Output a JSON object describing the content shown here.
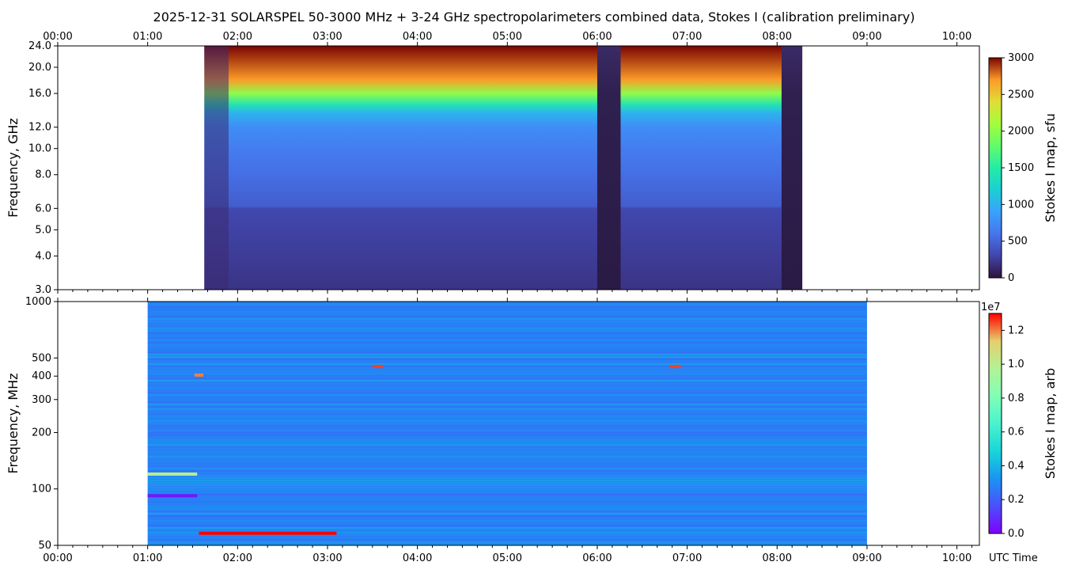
{
  "title": "2025-12-31  SOLARSPEL  50-3000 MHz  +  3-24 GHz  spectropolarimeters combined data,  Stokes I  (calibration preliminary)",
  "time_axis": {
    "label": "UTC Time",
    "ticks": [
      "00:00",
      "01:00",
      "02:00",
      "03:00",
      "04:00",
      "05:00",
      "06:00",
      "07:00",
      "08:00",
      "09:00",
      "10:00"
    ],
    "range_hours": [
      0.0,
      10.25
    ]
  },
  "colors": {
    "background": "#ffffff",
    "stokes_map_colormap": "turbo",
    "stokes_arb_colormap": "rainbow",
    "no_data": "#ffffff"
  },
  "chart_data": [
    {
      "type": "heatmap",
      "panel": "top",
      "ylabel": "Frequency, GHz",
      "yscale": "log",
      "ylim": [
        3.0,
        24.0
      ],
      "yticks": [
        "3.0",
        "4.0",
        "5.0",
        "6.0",
        "8.0",
        "10.0",
        "12.0",
        "16.0",
        "20.0",
        "24.0"
      ],
      "ytick_values": [
        3,
        4,
        5,
        6,
        8,
        10,
        12,
        16,
        20,
        24
      ],
      "data_time_range": [
        1.63,
        8.28
      ],
      "gaps": [
        [
          6.0,
          6.26
        ],
        [
          8.05,
          8.28
        ]
      ],
      "colorbar": {
        "label": "Stokes I map, sfu",
        "min": 0,
        "max": 3000,
        "ticks": [
          "0",
          "500",
          "1000",
          "1500",
          "2000",
          "2500",
          "3000"
        ],
        "tick_values": [
          0,
          500,
          1000,
          1500,
          2000,
          2500,
          3000
        ]
      },
      "spectrum_profile": [
        {
          "f_ghz": 3.0,
          "sfu": 200
        },
        {
          "f_ghz": 6.0,
          "sfu": 320
        },
        {
          "f_ghz": 6.1,
          "sfu": 450
        },
        {
          "f_ghz": 8.0,
          "sfu": 560
        },
        {
          "f_ghz": 10.0,
          "sfu": 650
        },
        {
          "f_ghz": 12.0,
          "sfu": 760
        },
        {
          "f_ghz": 13.5,
          "sfu": 1000
        },
        {
          "f_ghz": 14.5,
          "sfu": 1400
        },
        {
          "f_ghz": 16.0,
          "sfu": 2000
        },
        {
          "f_ghz": 18.0,
          "sfu": 2700
        },
        {
          "f_ghz": 24.0,
          "sfu": 3000
        }
      ]
    },
    {
      "type": "heatmap",
      "panel": "bottom",
      "ylabel": "Frequency, MHz",
      "yscale": "log",
      "ylim": [
        50,
        1000
      ],
      "yticks": [
        "50",
        "100",
        "200",
        "300",
        "400",
        "500",
        "1000"
      ],
      "ytick_values": [
        50,
        100,
        200,
        300,
        400,
        500,
        1000
      ],
      "data_time_range": [
        1.0,
        9.0
      ],
      "colorbar": {
        "label": "Stokes I map, arb",
        "exponent_label": "1e7",
        "min": 0.0,
        "max": 1.3,
        "ticks": [
          "0.0",
          "0.2",
          "0.4",
          "0.6",
          "0.8",
          "1.0",
          "1.2"
        ],
        "tick_values": [
          0.0,
          0.2,
          0.4,
          0.6,
          0.8,
          1.0,
          1.2
        ]
      },
      "features": [
        {
          "f_mhz": 58,
          "t_start": 1.57,
          "t_end": 3.1,
          "value": 1.3
        },
        {
          "f_mhz": 120,
          "t_start": 1.0,
          "t_end": 1.55,
          "value": 1.0
        },
        {
          "f_mhz": 92,
          "t_start": 1.0,
          "t_end": 1.55,
          "value": 0.05
        },
        {
          "f_mhz": 405,
          "t_start": 1.52,
          "t_end": 1.62,
          "value": 1.2
        },
        {
          "f_mhz": 450,
          "t_start": 3.5,
          "t_end": 3.62,
          "value": 1.25
        },
        {
          "f_mhz": 450,
          "t_start": 6.8,
          "t_end": 6.93,
          "value": 1.25
        }
      ]
    }
  ]
}
